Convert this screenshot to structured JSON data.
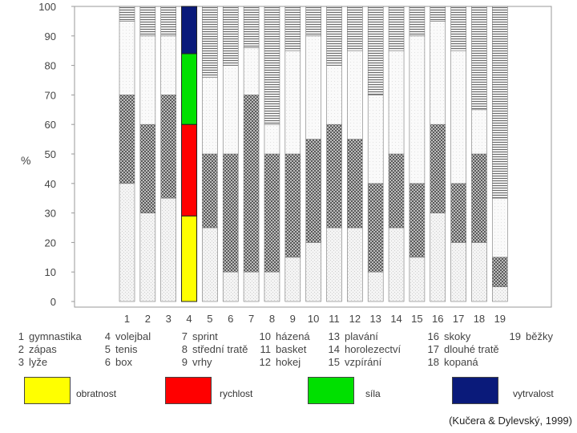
{
  "chart_data": {
    "type": "bar",
    "stacked": true,
    "percent": true,
    "title": "",
    "xlabel": "",
    "ylabel": "%",
    "ylim": [
      0,
      100
    ],
    "yticks": [
      0,
      10,
      20,
      30,
      40,
      50,
      60,
      70,
      80,
      90,
      100
    ],
    "categories": [
      "1",
      "2",
      "3",
      "4",
      "5",
      "6",
      "7",
      "8",
      "9",
      "10",
      "11",
      "12",
      "13",
      "14",
      "15",
      "16",
      "17",
      "18",
      "19"
    ],
    "series": [
      {
        "name": "obratnost",
        "color": "#ffff00",
        "values": [
          40,
          30,
          35,
          29,
          25,
          10,
          10,
          10,
          15,
          20,
          25,
          25,
          10,
          25,
          15,
          30,
          20,
          20,
          5
        ]
      },
      {
        "name": "rychlost",
        "color": "#ff0000",
        "values": [
          30,
          30,
          35,
          31,
          25,
          40,
          60,
          40,
          35,
          35,
          35,
          30,
          30,
          25,
          25,
          30,
          20,
          30,
          10
        ]
      },
      {
        "name": "síla",
        "color": "#00e000",
        "values": [
          25,
          30,
          20,
          24,
          26,
          30,
          16,
          10,
          35,
          35,
          20,
          30,
          30,
          35,
          50,
          35,
          45,
          15,
          20
        ]
      },
      {
        "name": "vytrvalost",
        "color": "#0a1a7a",
        "values": [
          5,
          10,
          10,
          16,
          24,
          20,
          14,
          40,
          15,
          10,
          20,
          15,
          30,
          15,
          10,
          5,
          15,
          35,
          65
        ]
      }
    ],
    "highlighted_category": "4",
    "legend": [
      {
        "label": "obratnost",
        "color": "#ffff00"
      },
      {
        "label": "rychlost",
        "color": "#ff0000"
      },
      {
        "label": "síla",
        "color": "#00e000"
      },
      {
        "label": "vytrvalost",
        "color": "#0a1a7a"
      }
    ]
  },
  "sports": [
    {
      "num": "1",
      "name": "gymnastika"
    },
    {
      "num": "2",
      "name": "zápas"
    },
    {
      "num": "3",
      "name": "lyže"
    },
    {
      "num": "4",
      "name": "volejbal"
    },
    {
      "num": "5",
      "name": "tenis"
    },
    {
      "num": "6",
      "name": "box"
    },
    {
      "num": "7",
      "name": "sprint"
    },
    {
      "num": "8",
      "name": "střední tratě"
    },
    {
      "num": "9",
      "name": "vrhy"
    },
    {
      "num": "10",
      "name": "házená"
    },
    {
      "num": "11",
      "name": "basket"
    },
    {
      "num": "12",
      "name": "hokej"
    },
    {
      "num": "13",
      "name": "plavání"
    },
    {
      "num": "14",
      "name": "horolezectví"
    },
    {
      "num": "15",
      "name": "vzpírání"
    },
    {
      "num": "16",
      "name": "skoky"
    },
    {
      "num": "17",
      "name": "dlouhé tratě"
    },
    {
      "num": "18",
      "name": "kopaná"
    },
    {
      "num": "19",
      "name": "běžky"
    }
  ],
  "citation": "(Kučera & Dylevský, 1999)"
}
